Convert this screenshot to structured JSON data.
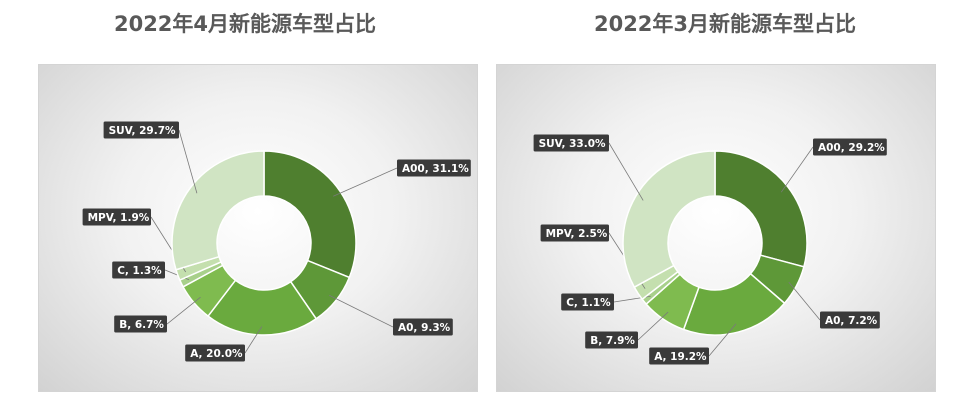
{
  "colors": {
    "A00": "#4f7f2f",
    "A0": "#5e9838",
    "A": "#6aaa3e",
    "B": "#7fbb4f",
    "C": "#a8d08b",
    "MPV": "#c4dfae",
    "SUV": "#d0e4c3"
  },
  "chart_data": [
    {
      "type": "donut",
      "title": "2022年4月新能源车型占比",
      "categories": [
        "A00",
        "A0",
        "A",
        "B",
        "C",
        "MPV",
        "SUV"
      ],
      "values": [
        31.1,
        9.3,
        20.0,
        6.7,
        1.3,
        1.9,
        29.7
      ],
      "labels": [
        "A00, 31.1%",
        "A0, 9.3%",
        "A, 20.0%",
        "B, 6.7%",
        "C, 1.3%",
        "MPV, 1.9%",
        "SUV, 29.7%"
      ]
    },
    {
      "type": "donut",
      "title": "2022年3月新能源车型占比",
      "categories": [
        "A00",
        "A0",
        "A",
        "B",
        "C",
        "MPV",
        "SUV"
      ],
      "values": [
        29.2,
        7.2,
        19.2,
        7.9,
        1.1,
        2.5,
        33.0
      ],
      "labels": [
        "A00, 29.2%",
        "A0, 7.2%",
        "A, 19.2%",
        "B, 7.9%",
        "C, 1.1%",
        "MPV, 2.5%",
        "SUV, 33.0%"
      ]
    }
  ]
}
